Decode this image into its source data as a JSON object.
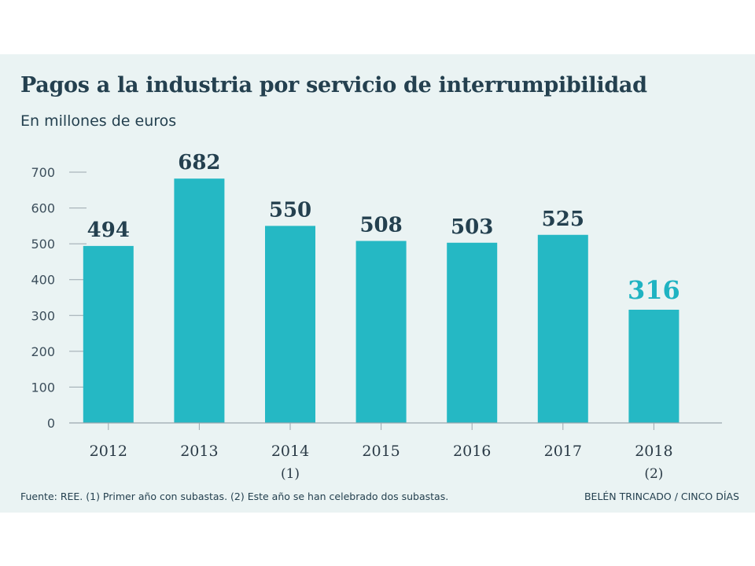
{
  "title": "Pagos a la industria por servicio de interrumpibilidad",
  "subtitle": "En millones de euros",
  "footer": {
    "source": "Fuente: REE. (1) Primer año con subastas. (2) Este año se han celebrado dos subastas.",
    "credit": "BELÉN TRINCADO / CINCO DÍAS"
  },
  "colors": {
    "panel_background": "#eaf3f3",
    "bar": "#25b8c4",
    "label": "#24404f",
    "highlight_label": "#1fb3c2",
    "axis": "#9aa6ae"
  },
  "chart_data": {
    "type": "bar",
    "title": "Pagos a la industria por servicio de interrumpibilidad",
    "subtitle": "En millones de euros",
    "xlabel": "",
    "ylabel": "",
    "categories": [
      "2012",
      "2013",
      "2014",
      "2015",
      "2016",
      "2017",
      "2018"
    ],
    "category_notes": [
      "",
      "",
      "(1)",
      "",
      "",
      "",
      "(2)"
    ],
    "values": [
      494,
      682,
      550,
      508,
      503,
      525,
      316
    ],
    "value_labels": [
      "494",
      "682",
      "550",
      "508",
      "503",
      "525",
      "316"
    ],
    "highlight_index": 6,
    "ylim": [
      0,
      700
    ],
    "yticks": [
      0,
      100,
      200,
      300,
      400,
      500,
      600,
      700
    ],
    "grid": false,
    "legend": "none"
  }
}
